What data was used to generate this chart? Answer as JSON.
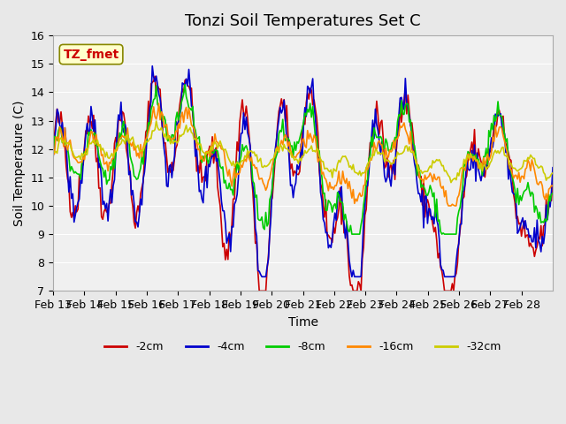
{
  "title": "Tonzi Soil Temperatures Set C",
  "xlabel": "Time",
  "ylabel": "Soil Temperature (C)",
  "ylim": [
    7.0,
    16.0
  ],
  "yticks": [
    7.0,
    8.0,
    9.0,
    10.0,
    11.0,
    12.0,
    13.0,
    14.0,
    15.0,
    16.0
  ],
  "date_labels": [
    "Feb 13",
    "Feb 14",
    "Feb 15",
    "Feb 16",
    "Feb 17",
    "Feb 18",
    "Feb 19",
    "Feb 20",
    "Feb 21",
    "Feb 22",
    "Feb 23",
    "Feb 24",
    "Feb 25",
    "Feb 26",
    "Feb 27",
    "Feb 28"
  ],
  "annotation_text": "TZ_fmet",
  "annotation_color": "#cc0000",
  "annotation_bg": "#ffffcc",
  "line_colors": {
    "-2cm": "#cc0000",
    "-4cm": "#0000cc",
    "-8cm": "#00cc00",
    "-16cm": "#ff8800",
    "-32cm": "#cccc00"
  },
  "legend_labels": [
    "-2cm",
    "-4cm",
    "-8cm",
    "-16cm",
    "-32cm"
  ],
  "bg_color": "#e8e8e8",
  "plot_bg": "#f0f0f0",
  "grid_color": "#ffffff",
  "title_fontsize": 13,
  "axis_fontsize": 9,
  "label_fontsize": 10
}
